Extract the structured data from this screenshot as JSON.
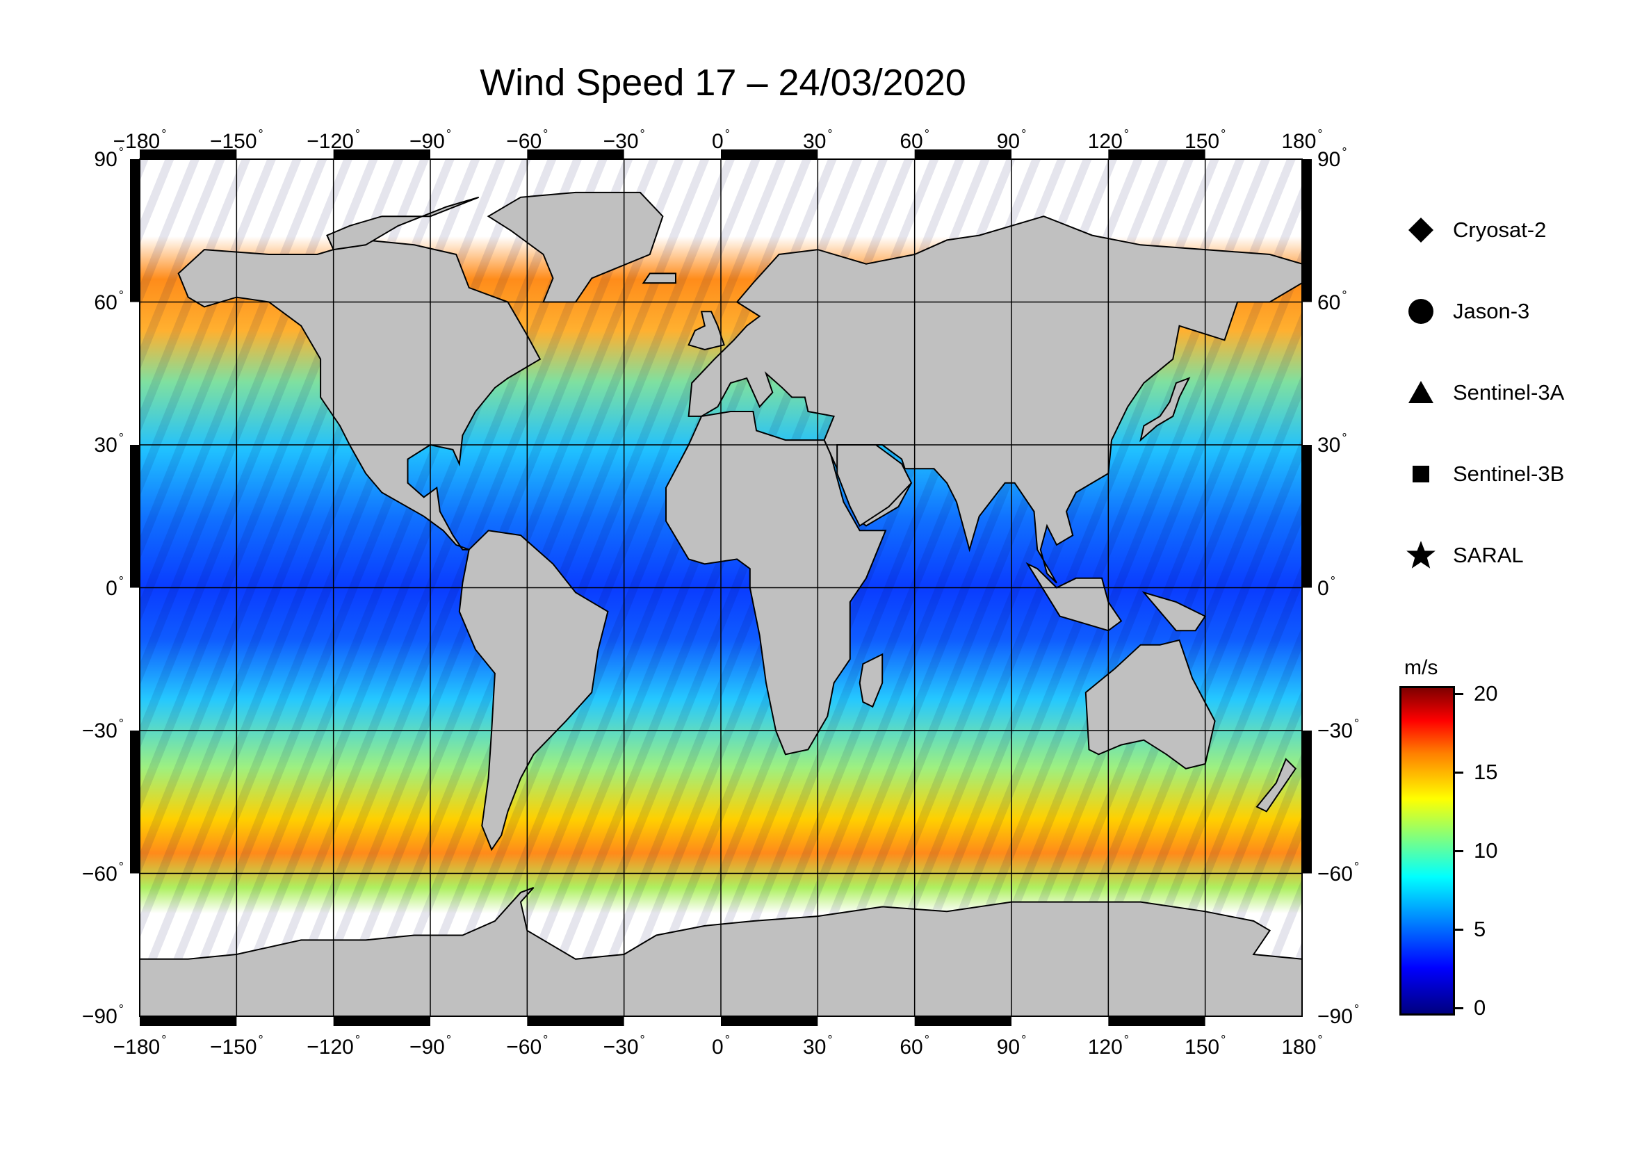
{
  "title": "Wind Speed 17 – 24/03/2020",
  "lon_labels": [
    "−180",
    "−150",
    "−120",
    "−90",
    "−60",
    "−30",
    "0",
    "30",
    "60",
    "90",
    "120",
    "150",
    "180"
  ],
  "lat_labels": [
    "90",
    "60",
    "30",
    "0",
    "−30",
    "−60",
    "−90"
  ],
  "legend": [
    {
      "label": "Cryosat-2",
      "icon": "diamond-icon"
    },
    {
      "label": "Jason-3",
      "icon": "circle-icon"
    },
    {
      "label": "Sentinel-3A",
      "icon": "triangle-icon"
    },
    {
      "label": "Sentinel-3B",
      "icon": "square-icon"
    },
    {
      "label": "SARAL",
      "icon": "star-icon"
    }
  ],
  "colorbar": {
    "unit": "m/s",
    "ticks": [
      "0",
      "5",
      "10",
      "15",
      "20"
    ],
    "range": [
      0,
      20
    ],
    "colors": [
      "#00007f",
      "#0000ff",
      "#007fff",
      "#00ffff",
      "#7fff7f",
      "#ffff00",
      "#ff7f00",
      "#ff0000",
      "#7f0000"
    ]
  },
  "map": {
    "lon_range": [
      -180,
      180
    ],
    "lat_range": [
      -90,
      90
    ],
    "grid_step_lon": 30,
    "grid_step_lat": 30,
    "land_color": "#c0c0c0",
    "ice_color": "#ffffff"
  }
}
